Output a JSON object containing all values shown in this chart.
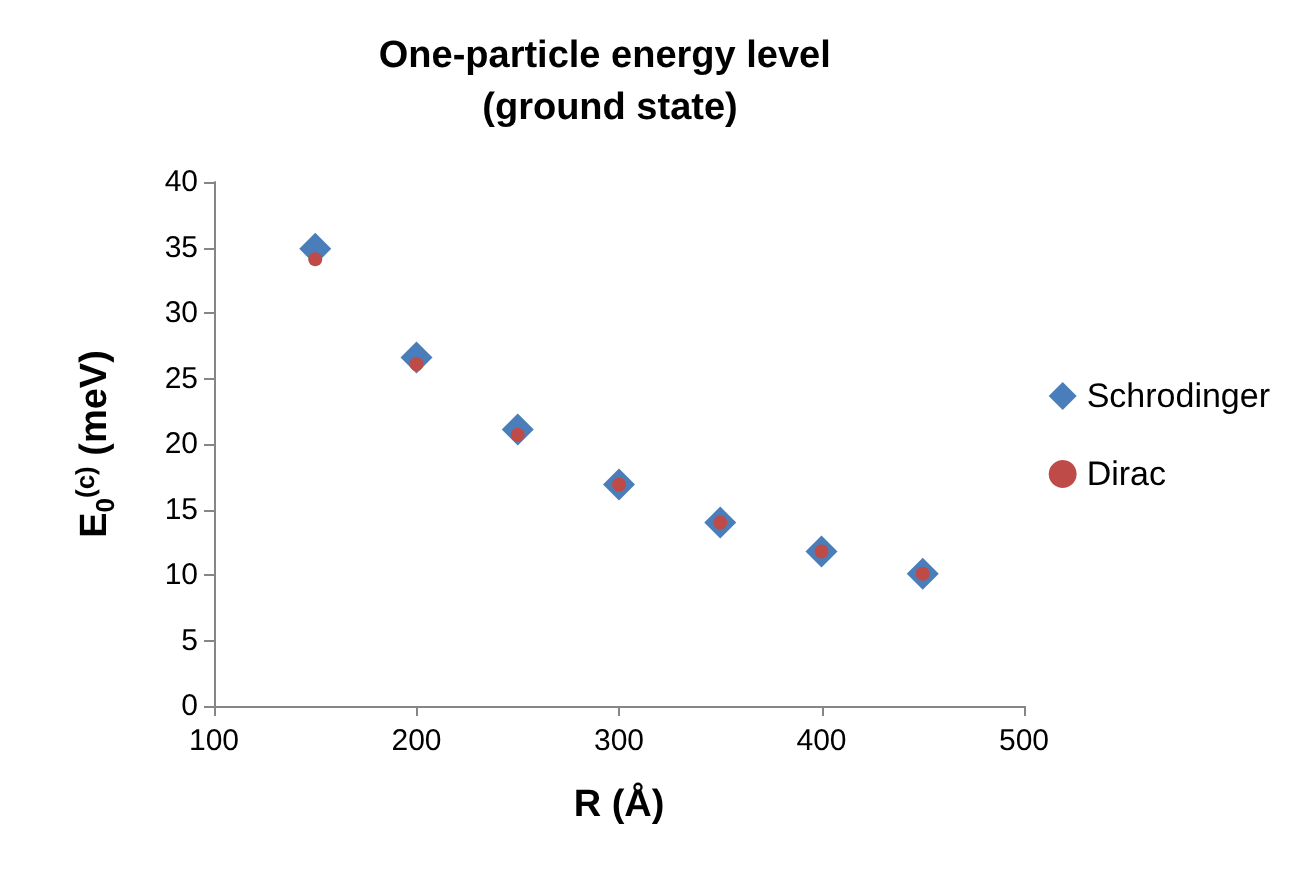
{
  "chart_data": {
    "type": "scatter",
    "title": "One-particle energy level (ground state)",
    "xlabel": "R (Å)",
    "ylabel": "E$_{0}$$^{(c)}$ (meV)",
    "x": [
      150,
      200,
      250,
      300,
      350,
      400,
      450
    ],
    "series": [
      {
        "name": "Schrodinger",
        "color": "#4a7ebb",
        "marker": "diamond",
        "values": [
          34.9,
          26.6,
          21.1,
          16.9,
          14.0,
          11.8,
          10.1
        ]
      },
      {
        "name": "Dirac",
        "color": "#be4b48",
        "marker": "circle",
        "values": [
          34.1,
          26.1,
          20.7,
          16.9,
          14.0,
          11.8,
          10.1
        ]
      }
    ],
    "xlim": [
      100,
      500
    ],
    "xticks": [
      100,
      200,
      300,
      400,
      500
    ],
    "ylim": [
      0,
      40
    ],
    "yticks": [
      0,
      5,
      10,
      15,
      20,
      25,
      30,
      35,
      40
    ],
    "grid": false,
    "legend": "right"
  }
}
